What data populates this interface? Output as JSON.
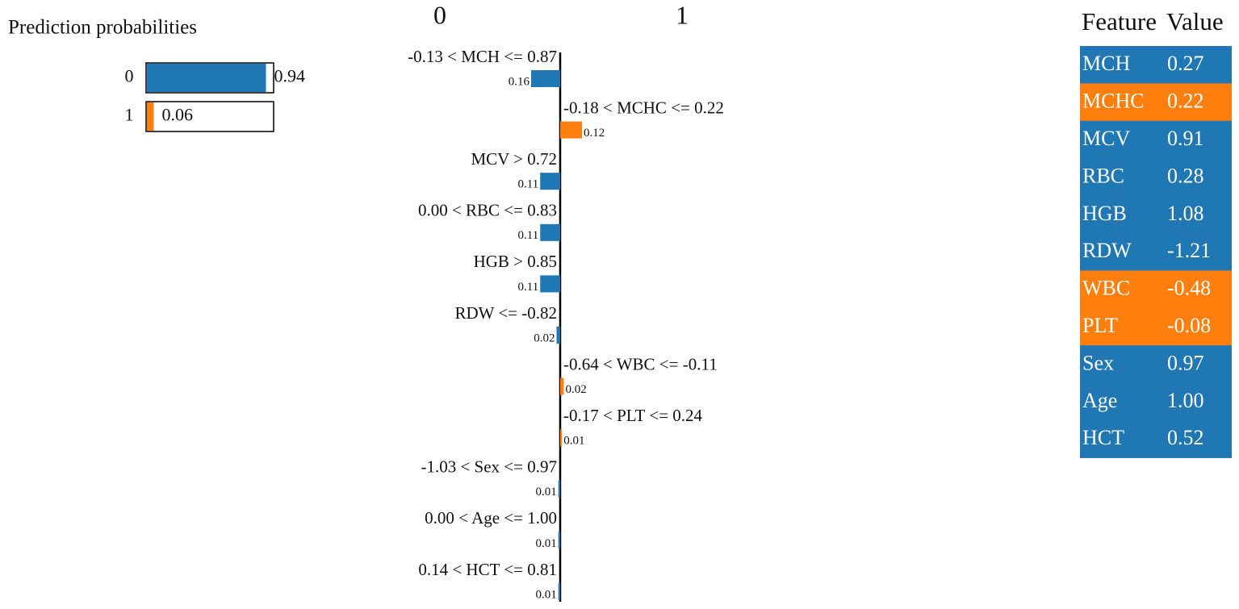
{
  "chart_data": [
    {
      "type": "probabilities",
      "title": "Prediction probabilities",
      "categories": [
        "0",
        "1"
      ],
      "values": [
        0.94,
        0.06
      ],
      "colors": [
        "#1f77b4",
        "#ff7f0e"
      ],
      "xlim": [
        0,
        1
      ]
    },
    {
      "type": "explanation",
      "categories": [
        "-0.13 < MCH <= 0.87",
        "-0.18 < MCHC <= 0.22",
        "MCV > 0.72",
        "0.00 < RBC <= 0.83",
        "HGB > 0.85",
        "RDW <= -0.82",
        "-0.64 < WBC <= -0.11",
        "-0.17 < PLT <= 0.24",
        "-1.03 < Sex <= 0.97",
        "0.00 < Age <= 1.00",
        "0.14 < HCT <= 0.81"
      ],
      "series": [
        {
          "name": "0",
          "color": "#1f77b4",
          "values": [
            0.16,
            null,
            0.11,
            0.11,
            0.11,
            0.02,
            null,
            null,
            0.01,
            0.01,
            0.01
          ]
        },
        {
          "name": "1",
          "color": "#ff7f0e",
          "values": [
            null,
            0.12,
            null,
            null,
            null,
            null,
            0.02,
            0.01,
            null,
            null,
            null
          ]
        }
      ]
    }
  ],
  "table": {
    "header": [
      "Feature",
      "Value"
    ],
    "rows": [
      [
        "MCH",
        "0.27"
      ],
      [
        "MCHC",
        "0.22"
      ],
      [
        "MCV",
        "0.91"
      ],
      [
        "RBC",
        "0.28"
      ],
      [
        "HGB",
        "1.08"
      ],
      [
        "RDW",
        "-1.21"
      ],
      [
        "WBC",
        "-0.48"
      ],
      [
        "PLT",
        "-0.08"
      ],
      [
        "Sex",
        "0.97"
      ],
      [
        "Age",
        "1.00"
      ],
      [
        "HCT",
        "0.52"
      ]
    ],
    "row_colors": [
      "#1f77b4",
      "#ff7f0e",
      "#1f77b4",
      "#1f77b4",
      "#1f77b4",
      "#1f77b4",
      "#ff7f0e",
      "#ff7f0e",
      "#1f77b4",
      "#1f77b4",
      "#1f77b4"
    ]
  }
}
